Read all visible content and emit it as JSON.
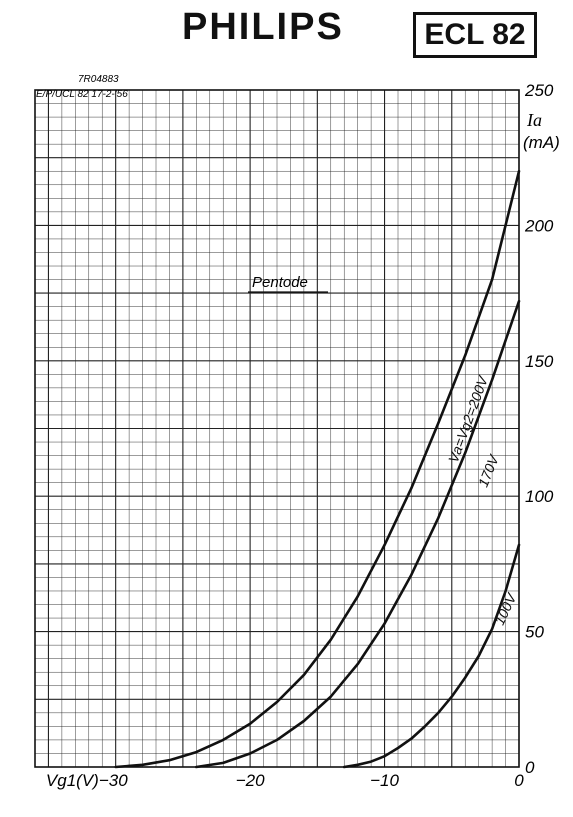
{
  "header": {
    "brand": "PHILIPS",
    "tube_type": "ECL 82"
  },
  "drawing_ref": {
    "line1": "7R04883",
    "line2": "E/P/UCL 82 17-2-'56"
  },
  "chart_data": {
    "type": "line",
    "title": "Pentode",
    "xlabel": "Vg1 (V)",
    "ylabel": "Ia (mA)",
    "xlim": [
      -36,
      0
    ],
    "ylim": [
      0,
      250
    ],
    "x_ticks": [
      -30,
      -20,
      -10,
      0
    ],
    "y_ticks": [
      0,
      50,
      100,
      150,
      200,
      250
    ],
    "x_tick_labels": [
      "Vg1(V)−30",
      "−20",
      "−10",
      "0"
    ],
    "y_tick_labels": [
      "0",
      "50",
      "100",
      "150",
      "200",
      "250"
    ],
    "grid": true,
    "series": [
      {
        "name": "Va=Vg2=200V",
        "x": [
          -30,
          -28,
          -26,
          -24,
          -22,
          -20,
          -18,
          -16,
          -14,
          -12,
          -10,
          -8,
          -6,
          -4,
          -2,
          0
        ],
        "y": [
          0,
          0.8,
          2.5,
          5.5,
          10,
          16,
          24,
          34,
          47,
          63,
          82,
          103,
          127,
          152,
          180,
          220
        ]
      },
      {
        "name": "170V",
        "x": [
          -24,
          -22,
          -20,
          -18,
          -16,
          -14,
          -12,
          -10,
          -8,
          -6,
          -4,
          -2,
          0
        ],
        "y": [
          0,
          1.5,
          5,
          10,
          17,
          26,
          38,
          53,
          71,
          92,
          116,
          143,
          172
        ]
      },
      {
        "name": "100V",
        "x": [
          -13,
          -12,
          -11,
          -10,
          -9,
          -8,
          -7,
          -6,
          -5,
          -4,
          -3,
          -2,
          -1,
          0
        ],
        "y": [
          0,
          0.8,
          2,
          4,
          7,
          10.5,
          15,
          20,
          26,
          33,
          41,
          51,
          65,
          82
        ]
      }
    ]
  }
}
